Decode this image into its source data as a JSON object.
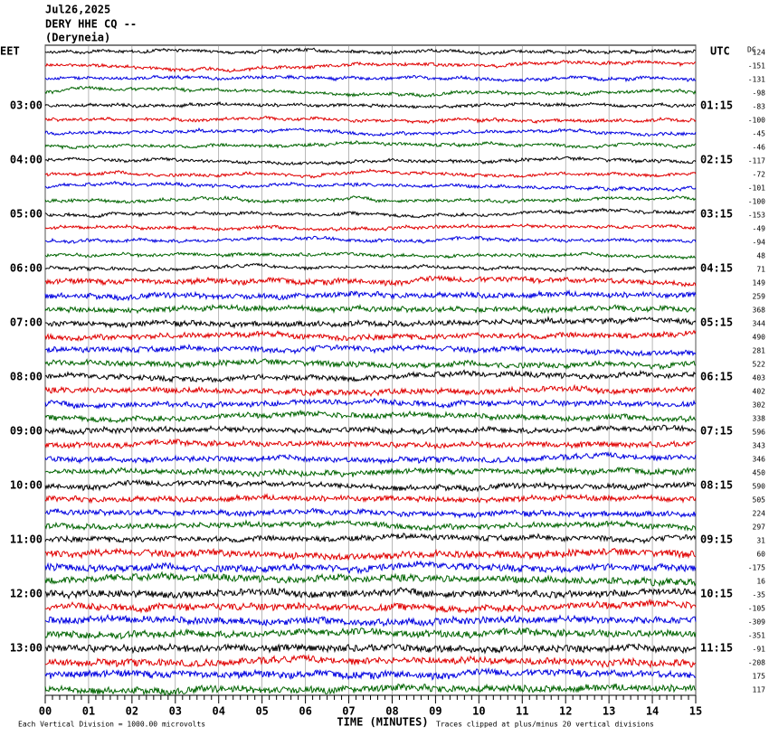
{
  "header": {
    "date": "Jul26,2025",
    "station": "DERY HHE CQ --",
    "location": "(Deryneia)"
  },
  "left_axis": {
    "title": "EET",
    "labels": [
      "03:00",
      "04:00",
      "05:00",
      "06:00",
      "07:00",
      "08:00",
      "09:00",
      "10:00",
      "11:00",
      "12:00",
      "13:00"
    ]
  },
  "right_axis": {
    "title": "UTC",
    "labels": [
      "01:15",
      "02:15",
      "03:15",
      "04:15",
      "05:15",
      "06:15",
      "07:15",
      "08:15",
      "09:15",
      "10:15",
      "11:15"
    ]
  },
  "dc_column": {
    "title": "DC",
    "offsets": [
      124,
      -151,
      -131,
      -98,
      -83,
      -100,
      -45,
      -46,
      -117,
      -72,
      -101,
      -100,
      -153,
      -49,
      -94,
      48,
      71,
      149,
      259,
      368,
      344,
      490,
      281,
      522,
      403,
      402,
      302,
      338,
      596,
      343,
      346,
      450,
      590,
      505,
      224,
      297,
      31,
      60,
      -175,
      16,
      -35,
      -105,
      -309,
      -351,
      -91,
      -208,
      175,
      117
    ]
  },
  "x_axis": {
    "title": "TIME (MINUTES)",
    "ticks": [
      "00",
      "01",
      "02",
      "03",
      "04",
      "05",
      "06",
      "07",
      "08",
      "09",
      "10",
      "11",
      "12",
      "13",
      "14",
      "15"
    ]
  },
  "footer": {
    "scale_note": "Each Vertical Division = 1000.00 microvolts",
    "clip_note": "Traces clipped at plus/minus 20 vertical divisions"
  }
}
